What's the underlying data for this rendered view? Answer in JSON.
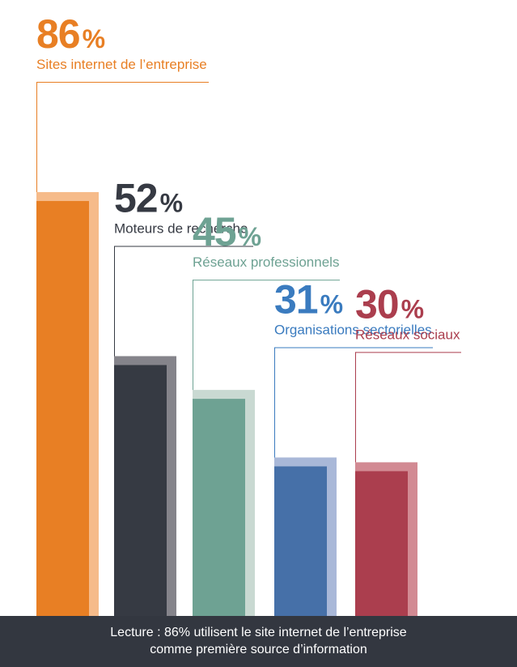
{
  "chart_data": {
    "type": "bar",
    "categories": [
      "Sites internet de l’entreprise",
      "Moteurs de recherche",
      "Réseaux professionnels",
      "Organisations sectorielles",
      "Réseaux sociaux"
    ],
    "values": [
      86,
      52,
      45,
      31,
      30
    ],
    "value_labels": [
      "86",
      "52",
      "45",
      "31",
      "30"
    ],
    "unit": "%",
    "colors": [
      "#e87f24",
      "#363a43",
      "#6ea293",
      "#4670a8",
      "#ab3e4e"
    ],
    "shadow_colors": [
      "#f6bb8a",
      "#85848b",
      "#c9d9d2",
      "#a9b8d8",
      "#d28a93"
    ],
    "label_colors": [
      "#e87f24",
      "#363a43",
      "#6ea293",
      "#3a7bbf",
      "#ab3e4e"
    ],
    "ylim": [
      0,
      100
    ],
    "grid": false,
    "legend": "none"
  },
  "footer": {
    "line1": "Lecture : 86% utilisent le site internet de l’entreprise",
    "line2": "comme première source d’information"
  }
}
